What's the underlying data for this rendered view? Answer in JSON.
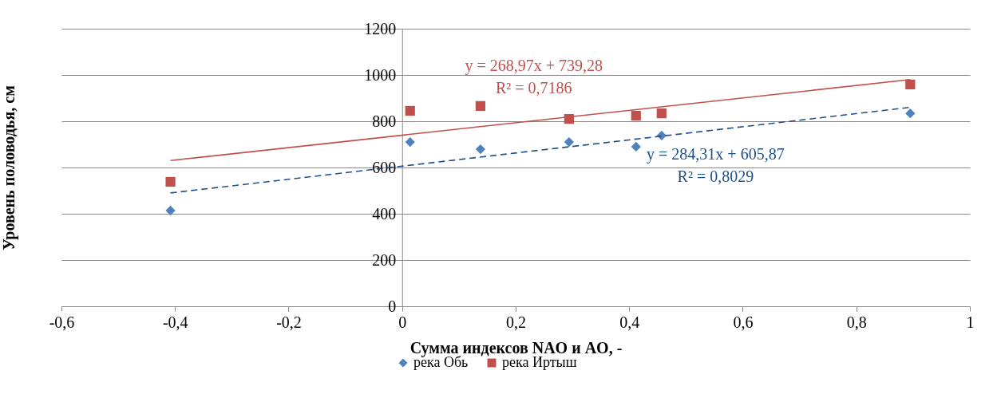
{
  "chart_data": {
    "type": "scatter",
    "xlabel": "Сумма индексов NAO и AO, -",
    "ylabel": "Уровень половодья, см",
    "xlim": [
      -0.6,
      1
    ],
    "xticks": [
      {
        "value": -0.6,
        "label": "-0,6"
      },
      {
        "value": -0.4,
        "label": "-0,4"
      },
      {
        "value": -0.2,
        "label": "-0,2"
      },
      0,
      {
        "value": 0.2,
        "label": "0,2"
      },
      {
        "value": 0.4,
        "label": "0,4"
      },
      {
        "value": 0.6,
        "label": "0,6"
      },
      {
        "value": 0.8,
        "label": "0,8"
      },
      1
    ],
    "ylim": [
      0,
      1200
    ],
    "yticks": [
      0,
      200,
      400,
      600,
      800,
      1000,
      1200
    ],
    "grid": "y",
    "legend": "bottom",
    "series": [
      {
        "name": "река Обь",
        "color": "#4f81bd",
        "marker": "diamond",
        "x": [
          -0.408,
          0.014,
          0.138,
          0.294,
          0.412,
          0.457,
          0.895
        ],
        "values": [
          414,
          710,
          679,
          710,
          690,
          738,
          834
        ]
      },
      {
        "name": "река Иртыш",
        "color": "#c0504d",
        "marker": "square",
        "x": [
          -0.408,
          0.014,
          0.138,
          0.294,
          0.412,
          0.457,
          0.895
        ],
        "values": [
          538,
          845,
          866,
          810,
          824,
          834,
          959
        ]
      },
      {
        "color": "#1f4e8c",
        "type": "line",
        "line_style": "dashed",
        "marker": "none",
        "x": [
          -0.408,
          0.895
        ],
        "values": [
          490,
          860
        ]
      },
      {
        "color": "#c0504d",
        "type": "line",
        "line_style": "solid",
        "marker": "none",
        "x": [
          -0.408,
          0.895
        ],
        "values": [
          630,
          980
        ]
      }
    ],
    "annotations": [
      "y = 268,97x + 739,28",
      "R² = 0,7186",
      "y = 284,31x + 605,87",
      "R² = 0,8029"
    ]
  }
}
